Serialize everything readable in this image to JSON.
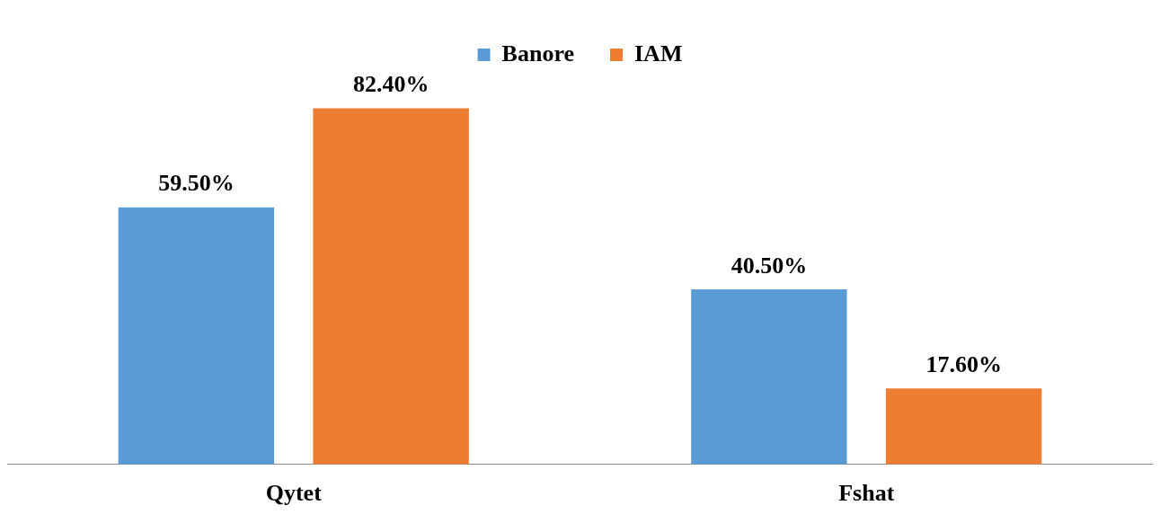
{
  "chart_data": {
    "type": "bar",
    "categories": [
      "Qytet",
      "Fshat"
    ],
    "series": [
      {
        "name": "Banore",
        "color": "#5b9bd5",
        "values": [
          59.5,
          40.5
        ],
        "value_labels": [
          "59.50%",
          "40.50%"
        ]
      },
      {
        "name": "IAM",
        "color": "#ed7d31",
        "values": [
          82.4,
          17.6
        ],
        "value_labels": [
          "82.40%",
          "17.60%"
        ]
      }
    ],
    "legend": "top",
    "grid": false
  }
}
